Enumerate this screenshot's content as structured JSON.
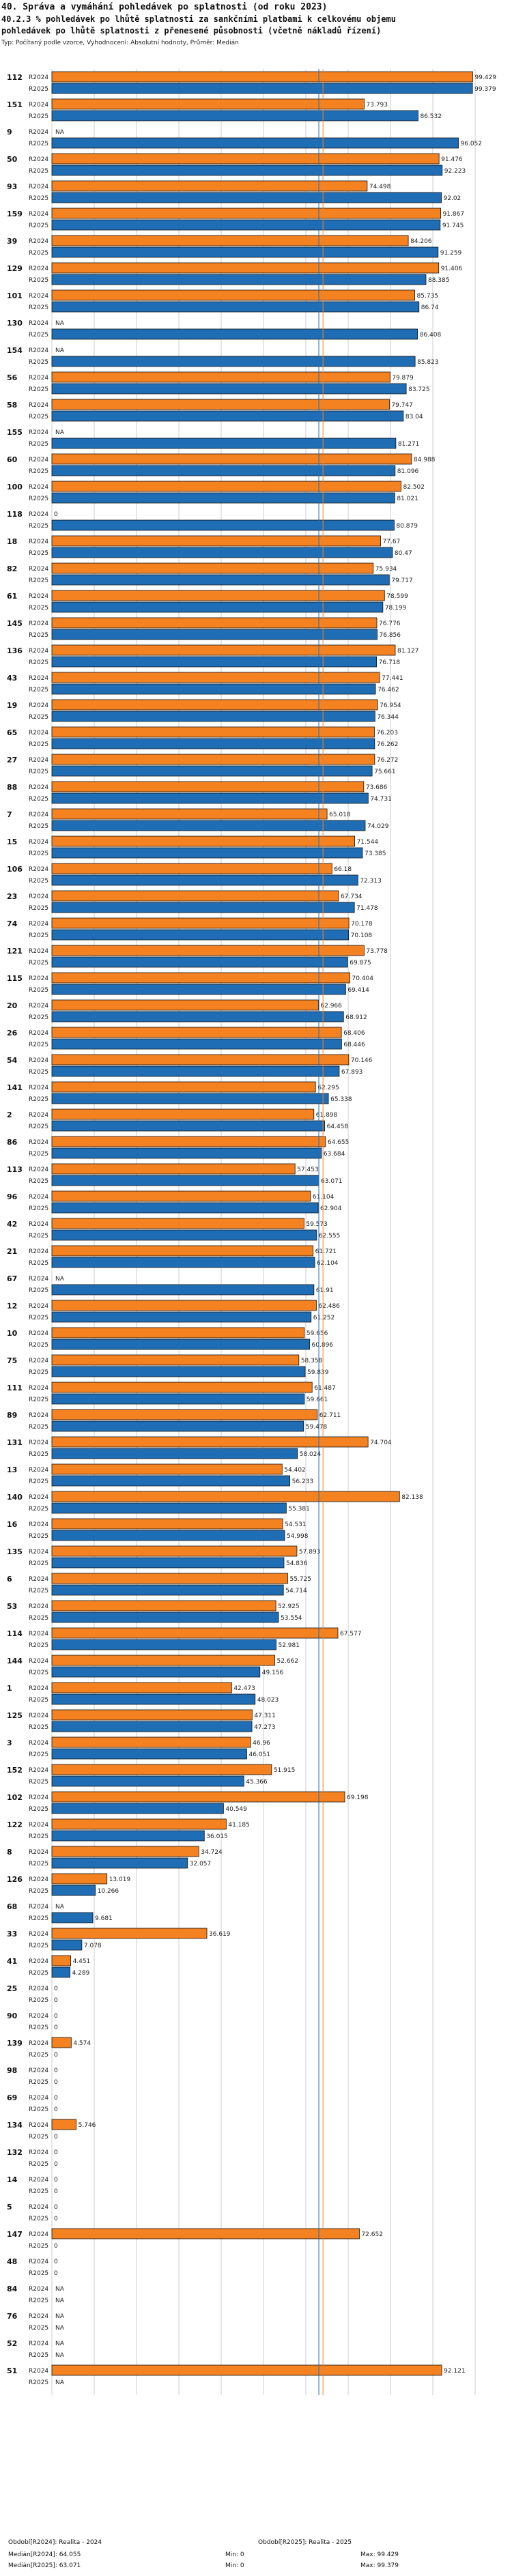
{
  "title": "40. Správa a vymáhání pohledávek po splatnosti (od roku 2023)",
  "subtitle_line1": "40.2.3 % pohledávek po lhůtě splatnosti za sankčními platbami k celkovému objemu",
  "subtitle_line2": "pohledávek po lhůtě splatnosti z přenesené působnosti (včetně nákladů řízení)",
  "meta": "Typ: Počítaný podle vzorce, Vyhodnocení: Absolutní hodnoty, Průměr: Medián",
  "colors": {
    "r2024": "#f58220",
    "r2025": "#1f6eb5",
    "median2024": "#f58220",
    "median2025": "#1f6eb5",
    "grid": "#cccccc"
  },
  "chart_data": {
    "type": "bar",
    "orientation": "horizontal",
    "xlim": [
      0,
      100
    ],
    "median_2024": 64.055,
    "median_2025": 63.071,
    "series_names": [
      "R2024",
      "R2025"
    ],
    "groups": [
      {
        "id": "112",
        "r2024": 99.429,
        "r2025": 99.379
      },
      {
        "id": "151",
        "r2024": 73.793,
        "r2025": 86.532
      },
      {
        "id": "9",
        "r2024": null,
        "r2025": 96.052
      },
      {
        "id": "50",
        "r2024": 91.476,
        "r2025": 92.223
      },
      {
        "id": "93",
        "r2024": 74.498,
        "r2025": 92.02
      },
      {
        "id": "159",
        "r2024": 91.867,
        "r2025": 91.745
      },
      {
        "id": "39",
        "r2024": 84.206,
        "r2025": 91.259
      },
      {
        "id": "129",
        "r2024": 91.406,
        "r2025": 88.385
      },
      {
        "id": "101",
        "r2024": 85.735,
        "r2025": 86.74
      },
      {
        "id": "130",
        "r2024": null,
        "r2025": 86.408
      },
      {
        "id": "154",
        "r2024": null,
        "r2025": 85.823
      },
      {
        "id": "56",
        "r2024": 79.879,
        "r2025": 83.725
      },
      {
        "id": "58",
        "r2024": 79.747,
        "r2025": 83.04
      },
      {
        "id": "155",
        "r2024": null,
        "r2025": 81.271
      },
      {
        "id": "60",
        "r2024": 84.988,
        "r2025": 81.096
      },
      {
        "id": "100",
        "r2024": 82.502,
        "r2025": 81.021
      },
      {
        "id": "118",
        "r2024": 0,
        "r2025": 80.879
      },
      {
        "id": "18",
        "r2024": 77.67,
        "r2025": 80.47
      },
      {
        "id": "82",
        "r2024": 75.934,
        "r2025": 79.717
      },
      {
        "id": "61",
        "r2024": 78.599,
        "r2025": 78.199
      },
      {
        "id": "145",
        "r2024": 76.776,
        "r2025": 76.856
      },
      {
        "id": "136",
        "r2024": 81.127,
        "r2025": 76.718
      },
      {
        "id": "43",
        "r2024": 77.441,
        "r2025": 76.462
      },
      {
        "id": "19",
        "r2024": 76.954,
        "r2025": 76.344
      },
      {
        "id": "65",
        "r2024": 76.203,
        "r2025": 76.262
      },
      {
        "id": "27",
        "r2024": 76.272,
        "r2025": 75.661
      },
      {
        "id": "88",
        "r2024": 73.686,
        "r2025": 74.731
      },
      {
        "id": "7",
        "r2024": 65.018,
        "r2025": 74.029
      },
      {
        "id": "15",
        "r2024": 71.544,
        "r2025": 73.385
      },
      {
        "id": "106",
        "r2024": 66.18,
        "r2025": 72.313
      },
      {
        "id": "23",
        "r2024": 67.734,
        "r2025": 71.478
      },
      {
        "id": "74",
        "r2024": 70.178,
        "r2025": 70.108
      },
      {
        "id": "121",
        "r2024": 73.778,
        "r2025": 69.875
      },
      {
        "id": "115",
        "r2024": 70.404,
        "r2025": 69.414
      },
      {
        "id": "20",
        "r2024": 62.966,
        "r2025": 68.912
      },
      {
        "id": "26",
        "r2024": 68.406,
        "r2025": 68.446
      },
      {
        "id": "54",
        "r2024": 70.146,
        "r2025": 67.893
      },
      {
        "id": "141",
        "r2024": 62.295,
        "r2025": 65.338
      },
      {
        "id": "2",
        "r2024": 61.898,
        "r2025": 64.458
      },
      {
        "id": "86",
        "r2024": 64.655,
        "r2025": 63.684
      },
      {
        "id": "113",
        "r2024": 57.453,
        "r2025": 63.071
      },
      {
        "id": "96",
        "r2024": 61.104,
        "r2025": 62.904
      },
      {
        "id": "42",
        "r2024": 59.573,
        "r2025": 62.555
      },
      {
        "id": "21",
        "r2024": 61.721,
        "r2025": 62.104
      },
      {
        "id": "67",
        "r2024": null,
        "r2025": 61.91
      },
      {
        "id": "12",
        "r2024": 62.486,
        "r2025": 61.252
      },
      {
        "id": "10",
        "r2024": 59.656,
        "r2025": 60.896
      },
      {
        "id": "75",
        "r2024": 58.358,
        "r2025": 59.839
      },
      {
        "id": "111",
        "r2024": 61.487,
        "r2025": 59.661
      },
      {
        "id": "89",
        "r2024": 62.711,
        "r2025": 59.478
      },
      {
        "id": "131",
        "r2024": 74.704,
        "r2025": 58.024
      },
      {
        "id": "13",
        "r2024": 54.402,
        "r2025": 56.233
      },
      {
        "id": "140",
        "r2024": 82.138,
        "r2025": 55.381
      },
      {
        "id": "16",
        "r2024": 54.531,
        "r2025": 54.998
      },
      {
        "id": "135",
        "r2024": 57.893,
        "r2025": 54.836
      },
      {
        "id": "6",
        "r2024": 55.725,
        "r2025": 54.714
      },
      {
        "id": "53",
        "r2024": 52.925,
        "r2025": 53.554
      },
      {
        "id": "114",
        "r2024": 67.577,
        "r2025": 52.981
      },
      {
        "id": "144",
        "r2024": 52.662,
        "r2025": 49.156
      },
      {
        "id": "1",
        "r2024": 42.473,
        "r2025": 48.023
      },
      {
        "id": "125",
        "r2024": 47.311,
        "r2025": 47.273
      },
      {
        "id": "3",
        "r2024": 46.96,
        "r2025": 46.051
      },
      {
        "id": "152",
        "r2024": 51.915,
        "r2025": 45.366
      },
      {
        "id": "102",
        "r2024": 69.198,
        "r2025": 40.549
      },
      {
        "id": "122",
        "r2024": 41.185,
        "r2025": 36.015
      },
      {
        "id": "8",
        "r2024": 34.724,
        "r2025": 32.057
      },
      {
        "id": "126",
        "r2024": 13.019,
        "r2025": 10.266
      },
      {
        "id": "68",
        "r2024": null,
        "r2025": 9.681
      },
      {
        "id": "33",
        "r2024": 36.619,
        "r2025": 7.078
      },
      {
        "id": "41",
        "r2024": 4.451,
        "r2025": 4.289
      },
      {
        "id": "25",
        "r2024": 0,
        "r2025": 0
      },
      {
        "id": "90",
        "r2024": 0,
        "r2025": 0
      },
      {
        "id": "139",
        "r2024": 4.574,
        "r2025": 0
      },
      {
        "id": "98",
        "r2024": 0,
        "r2025": 0
      },
      {
        "id": "69",
        "r2024": 0,
        "r2025": 0
      },
      {
        "id": "134",
        "r2024": 5.746,
        "r2025": 0
      },
      {
        "id": "132",
        "r2024": 0,
        "r2025": 0
      },
      {
        "id": "14",
        "r2024": 0,
        "r2025": 0
      },
      {
        "id": "5",
        "r2024": 0,
        "r2025": 0
      },
      {
        "id": "147",
        "r2024": 72.652,
        "r2025": 0
      },
      {
        "id": "48",
        "r2024": 0,
        "r2025": 0
      },
      {
        "id": "84",
        "r2024": null,
        "r2025": null
      },
      {
        "id": "76",
        "r2024": null,
        "r2025": null
      },
      {
        "id": "52",
        "r2024": null,
        "r2025": null
      },
      {
        "id": "51",
        "r2024": 92.121,
        "r2025": null
      }
    ]
  },
  "footer": {
    "line1_left": "Období[R2024]: Realita - 2024",
    "line1_right": "Období[R2025]: Realita - 2025",
    "median2024": "Medián[R2024]: 64.055",
    "median2025": "Medián[R2025]: 63.071",
    "min2024": "Min: 0",
    "min2025": "Min: 0",
    "max2024": "Max: 99.429",
    "max2025": "Max: 99.379"
  }
}
